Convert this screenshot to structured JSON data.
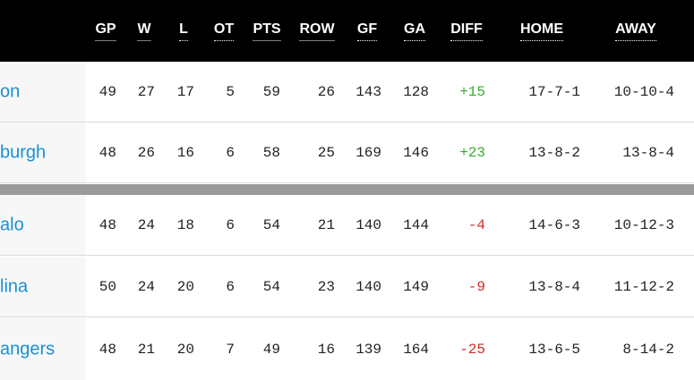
{
  "headers": {
    "gp": "GP",
    "w": "W",
    "l": "L",
    "ot": "OT",
    "pts": "PTS",
    "row": "ROW",
    "gf": "GF",
    "ga": "GA",
    "diff": "DIFF",
    "home": "HOME",
    "away": "AWAY"
  },
  "rows": [
    {
      "team": "on",
      "gp": "49",
      "w": "27",
      "l": "17",
      "ot": "5",
      "pts": "59",
      "row": "26",
      "gf": "143",
      "ga": "128",
      "diff": "+15",
      "home": "17-7-1",
      "away": "10-10-4"
    },
    {
      "team": "burgh",
      "gp": "48",
      "w": "26",
      "l": "16",
      "ot": "6",
      "pts": "58",
      "row": "25",
      "gf": "169",
      "ga": "146",
      "diff": "+23",
      "home": "13-8-2",
      "away": "13-8-4"
    },
    {
      "team": "alo",
      "gp": "48",
      "w": "24",
      "l": "18",
      "ot": "6",
      "pts": "54",
      "row": "21",
      "gf": "140",
      "ga": "144",
      "diff": "-4",
      "home": "14-6-3",
      "away": "10-12-3"
    },
    {
      "team": "lina",
      "gp": "50",
      "w": "24",
      "l": "20",
      "ot": "6",
      "pts": "54",
      "row": "23",
      "gf": "140",
      "ga": "149",
      "diff": "-9",
      "home": "13-8-4",
      "away": "11-12-2"
    },
    {
      "team": "angers",
      "gp": "48",
      "w": "21",
      "l": "20",
      "ot": "7",
      "pts": "49",
      "row": "16",
      "gf": "139",
      "ga": "164",
      "diff": "-25",
      "home": "13-6-5",
      "away": "8-14-2"
    }
  ],
  "colors": {
    "header_bg": "#000000",
    "team_link": "#1a8fd6",
    "diff_positive": "#3aaa35",
    "diff_negative": "#d42a2a",
    "separator": "#9b9b9b"
  }
}
